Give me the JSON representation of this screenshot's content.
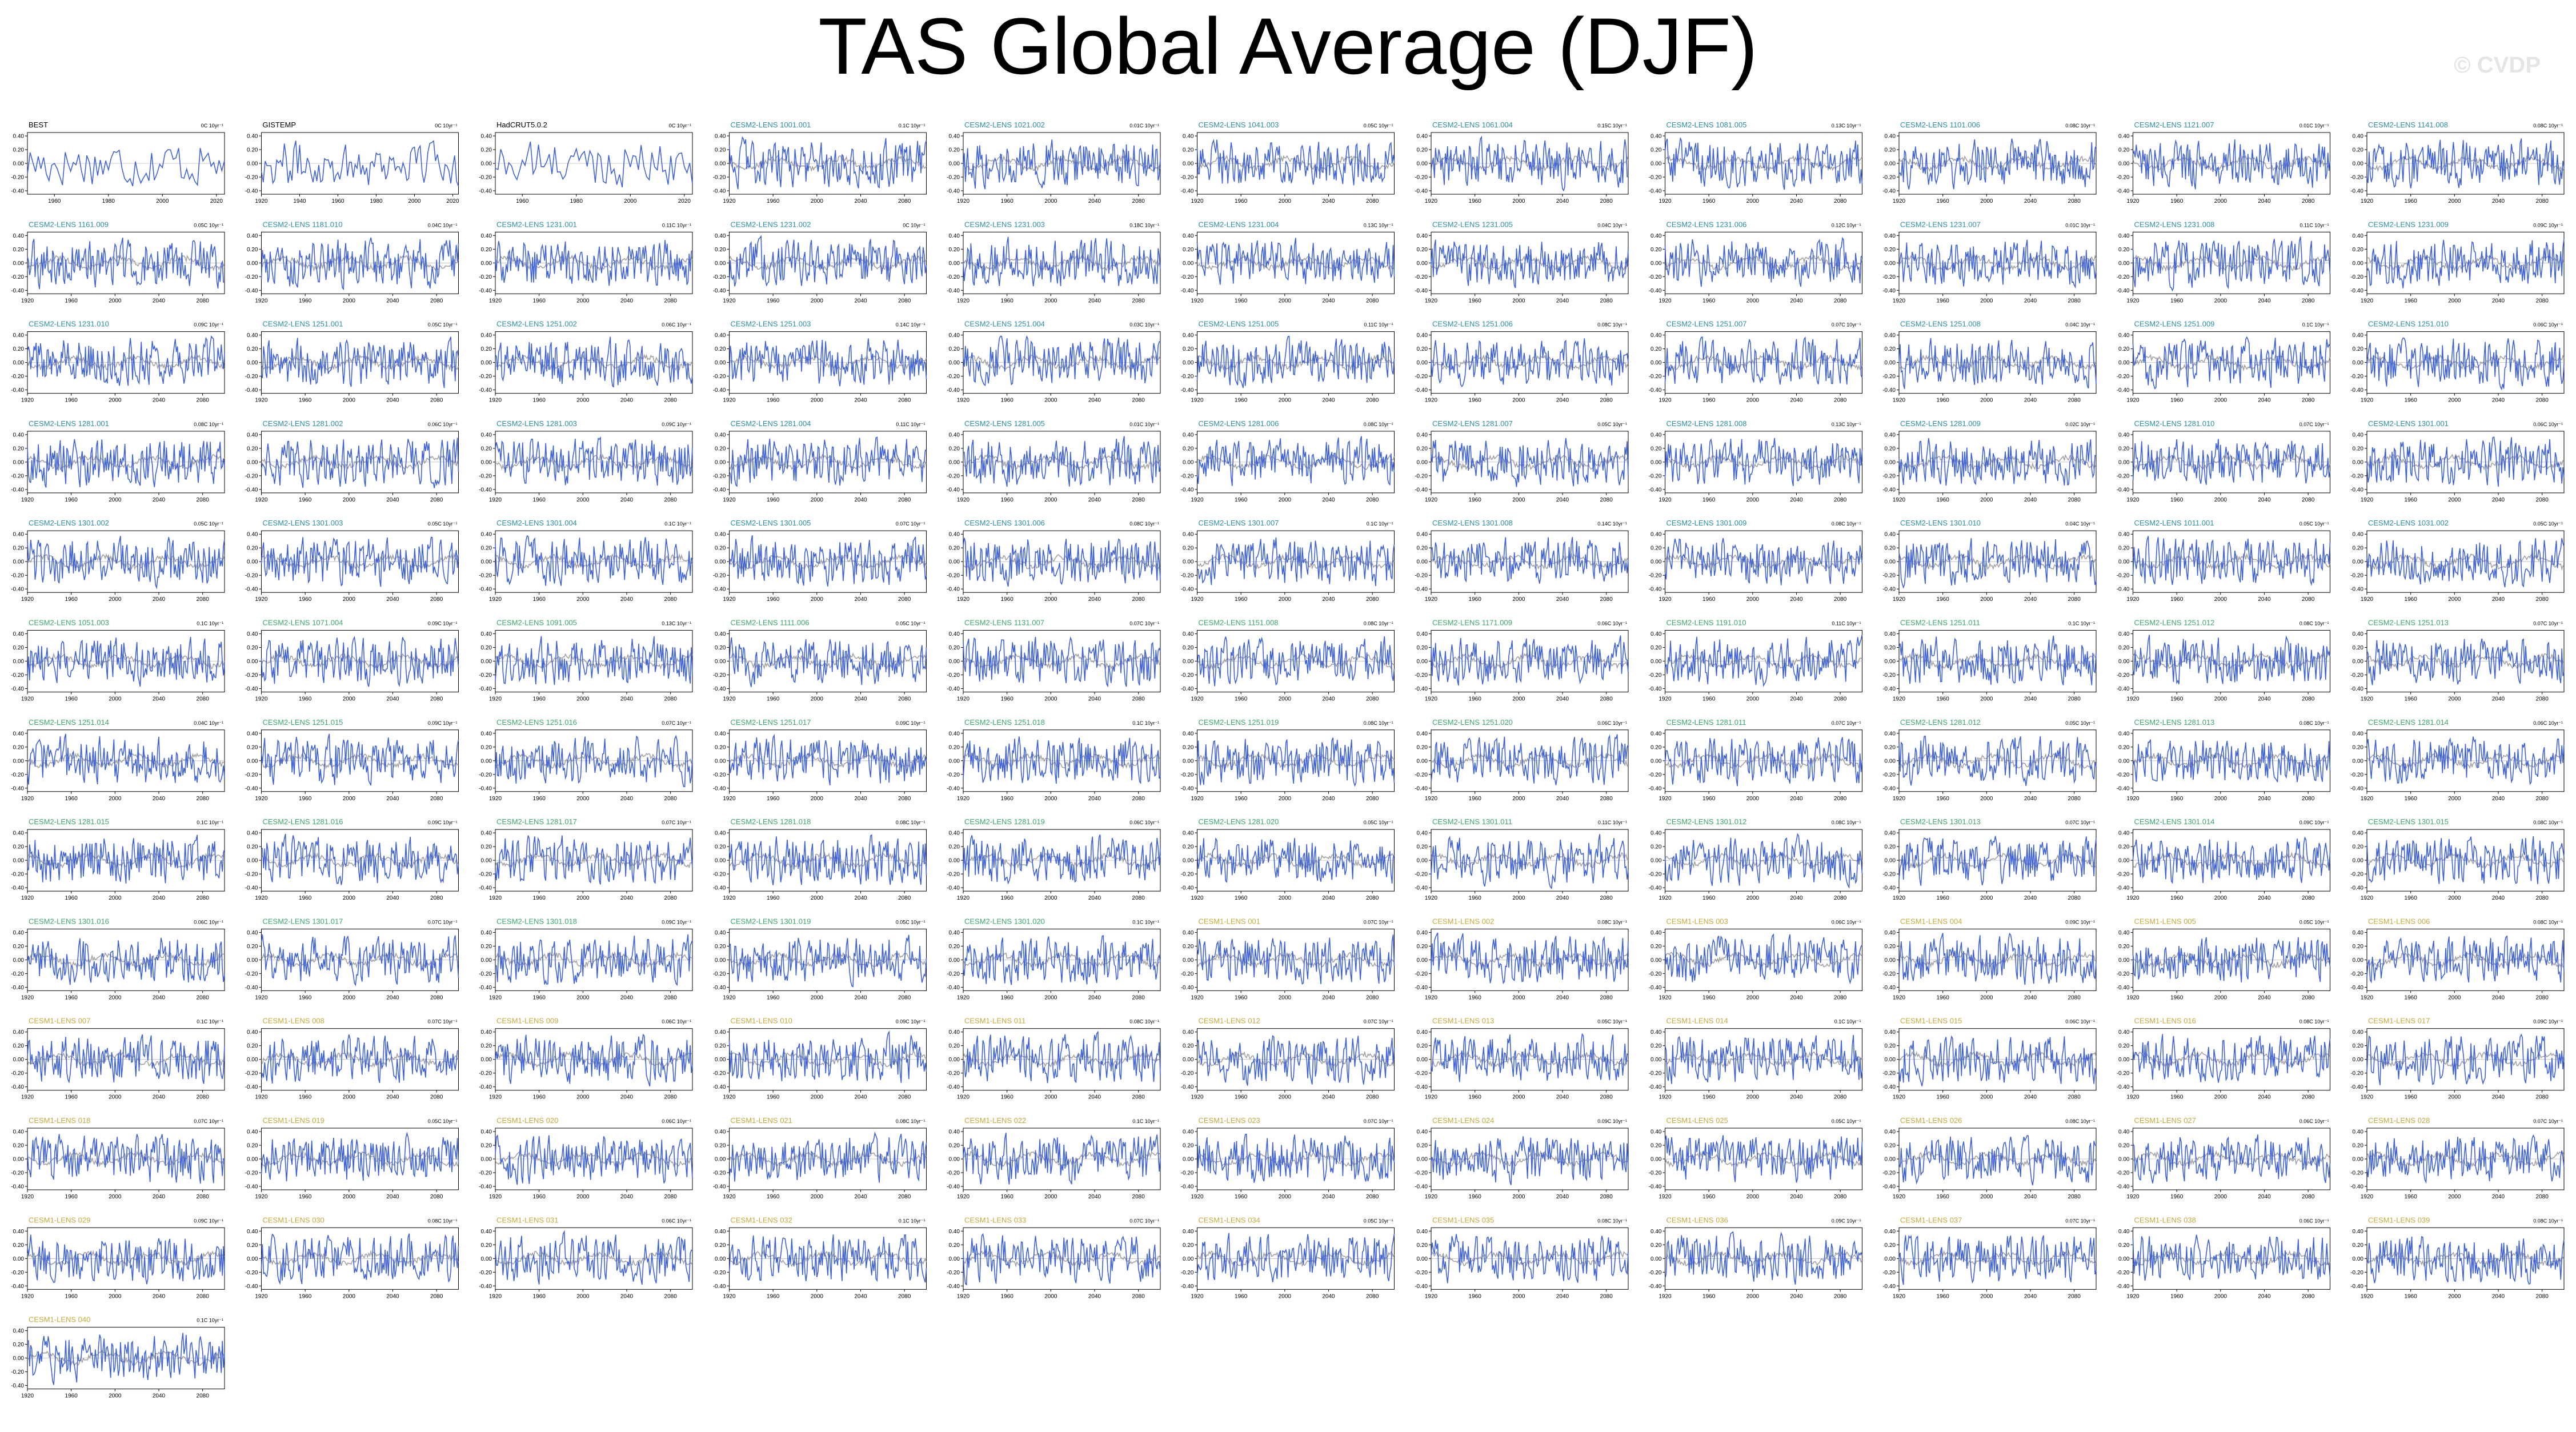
{
  "figure": {
    "title": "TAS Global Average (DJF)",
    "credit": "© CVDP"
  },
  "colors": {
    "series": "#3f63d6",
    "ensemble_mean": "#8c8c8c",
    "title_observed": "#000000",
    "title_lens1": "#2a8fa5",
    "title_lens2": "#3aa86b",
    "title_gold": "#c7a93a"
  },
  "chart_data": {
    "type": "line",
    "layout": "small-multiples grid, 11 columns x 13 rows",
    "ylim": [
      -0.45,
      0.45
    ],
    "yticks": [
      "0.40",
      "0.20",
      "0.00",
      "-0.20",
      "-0.40"
    ],
    "model_x_range": [
      1920,
      2100
    ],
    "model_xticks": [
      "1920",
      "1960",
      "2000",
      "2040",
      "2080"
    ],
    "observed_panels": [
      {
        "name": "BEST",
        "trend": "0C 10yr⁻¹",
        "x_range": [
          1950,
          2023
        ],
        "xticks": [
          "1960",
          "1980",
          "2000",
          "2020"
        ]
      },
      {
        "name": "GISTEMP",
        "trend": "0C 10yr⁻¹",
        "x_range": [
          1920,
          2023
        ],
        "xticks": [
          "1920",
          "1940",
          "1960",
          "1980",
          "2000",
          "2020"
        ]
      },
      {
        "name": "HadCRUT5.0.2",
        "trend": "0C 10yr⁻¹",
        "x_range": [
          1950,
          2023
        ],
        "xticks": [
          "1960",
          "1980",
          "2000",
          "2020"
        ]
      }
    ],
    "model_panels": [
      {
        "name": "CESM2-LENS 1001.001",
        "trend": "0.1C 10yr⁻¹",
        "color": "lens1"
      },
      {
        "name": "CESM2-LENS 1021.002",
        "trend": "0.01C 10yr⁻¹",
        "color": "lens1"
      },
      {
        "name": "CESM2-LENS 1041.003",
        "trend": "0.05C 10yr⁻¹",
        "color": "lens1"
      },
      {
        "name": "CESM2-LENS 1061.004",
        "trend": "0.15C 10yr⁻¹",
        "color": "lens1"
      },
      {
        "name": "CESM2-LENS 1081.005",
        "trend": "0.13C 10yr⁻¹",
        "color": "lens1"
      },
      {
        "name": "CESM2-LENS 1101.006",
        "trend": "0.08C 10yr⁻¹",
        "color": "lens1"
      },
      {
        "name": "CESM2-LENS 1121.007",
        "trend": "0.01C 10yr⁻¹",
        "color": "lens1"
      },
      {
        "name": "CESM2-LENS 1141.008",
        "trend": "0.08C 10yr⁻¹",
        "color": "lens1"
      },
      {
        "name": "CESM2-LENS 1161.009",
        "trend": "0.05C 10yr⁻¹",
        "color": "lens1"
      },
      {
        "name": "CESM2-LENS 1181.010",
        "trend": "0.04C 10yr⁻¹",
        "color": "lens1"
      },
      {
        "name": "CESM2-LENS 1231.001",
        "trend": "0.11C 10yr⁻¹",
        "color": "lens1"
      },
      {
        "name": "CESM2-LENS 1231.002",
        "trend": "0C 10yr⁻¹",
        "color": "lens1"
      },
      {
        "name": "CESM2-LENS 1231.003",
        "trend": "0.18C 10yr⁻¹",
        "color": "lens1"
      },
      {
        "name": "CESM2-LENS 1231.004",
        "trend": "0.13C 10yr⁻¹",
        "color": "lens1"
      },
      {
        "name": "CESM2-LENS 1231.005",
        "trend": "0.04C 10yr⁻¹",
        "color": "lens1"
      },
      {
        "name": "CESM2-LENS 1231.006",
        "trend": "0.12C 10yr⁻¹",
        "color": "lens1"
      },
      {
        "name": "CESM2-LENS 1231.007",
        "trend": "0.01C 10yr⁻¹",
        "color": "lens1"
      },
      {
        "name": "CESM2-LENS 1231.008",
        "trend": "0.11C 10yr⁻¹",
        "color": "lens1"
      },
      {
        "name": "CESM2-LENS 1231.009",
        "trend": "0.09C 10yr⁻¹",
        "color": "lens1"
      },
      {
        "name": "CESM2-LENS 1231.010",
        "trend": "0.09C 10yr⁻¹",
        "color": "lens1"
      },
      {
        "name": "CESM2-LENS 1251.001",
        "trend": "0.05C 10yr⁻¹",
        "color": "lens1"
      },
      {
        "name": "CESM2-LENS 1251.002",
        "trend": "0.06C 10yr⁻¹",
        "color": "lens1"
      },
      {
        "name": "CESM2-LENS 1251.003",
        "trend": "0.14C 10yr⁻¹",
        "color": "lens1"
      },
      {
        "name": "CESM2-LENS 1251.004",
        "trend": "0.03C 10yr⁻¹",
        "color": "lens1"
      },
      {
        "name": "CESM2-LENS 1251.005",
        "trend": "0.11C 10yr⁻¹",
        "color": "lens1"
      },
      {
        "name": "CESM2-LENS 1251.006",
        "trend": "0.08C 10yr⁻¹",
        "color": "lens1"
      },
      {
        "name": "CESM2-LENS 1251.007",
        "trend": "0.07C 10yr⁻¹",
        "color": "lens1"
      },
      {
        "name": "CESM2-LENS 1251.008",
        "trend": "0.04C 10yr⁻¹",
        "color": "lens1"
      },
      {
        "name": "CESM2-LENS 1251.009",
        "trend": "0.1C 10yr⁻¹",
        "color": "lens1"
      },
      {
        "name": "CESM2-LENS 1251.010",
        "trend": "0.06C 10yr⁻¹",
        "color": "lens1"
      },
      {
        "name": "CESM2-LENS 1281.001",
        "trend": "0.08C 10yr⁻¹",
        "color": "lens1"
      },
      {
        "name": "CESM2-LENS 1281.002",
        "trend": "0.06C 10yr⁻¹",
        "color": "lens1"
      },
      {
        "name": "CESM2-LENS 1281.003",
        "trend": "0.09C 10yr⁻¹",
        "color": "lens1"
      },
      {
        "name": "CESM2-LENS 1281.004",
        "trend": "0.11C 10yr⁻¹",
        "color": "lens1"
      },
      {
        "name": "CESM2-LENS 1281.005",
        "trend": "0.01C 10yr⁻¹",
        "color": "lens1"
      },
      {
        "name": "CESM2-LENS 1281.006",
        "trend": "0.08C 10yr⁻¹",
        "color": "lens1"
      },
      {
        "name": "CESM2-LENS 1281.007",
        "trend": "0.05C 10yr⁻¹",
        "color": "lens1"
      },
      {
        "name": "CESM2-LENS 1281.008",
        "trend": "0.13C 10yr⁻¹",
        "color": "lens1"
      },
      {
        "name": "CESM2-LENS 1281.009",
        "trend": "0.02C 10yr⁻¹",
        "color": "lens1"
      },
      {
        "name": "CESM2-LENS 1281.010",
        "trend": "0.07C 10yr⁻¹",
        "color": "lens1"
      },
      {
        "name": "CESM2-LENS 1301.001",
        "trend": "0.06C 10yr⁻¹",
        "color": "lens1"
      },
      {
        "name": "CESM2-LENS 1301.002",
        "trend": "0.05C 10yr⁻¹",
        "color": "lens1"
      },
      {
        "name": "CESM2-LENS 1301.003",
        "trend": "0.05C 10yr⁻¹",
        "color": "lens1"
      },
      {
        "name": "CESM2-LENS 1301.004",
        "trend": "0.1C 10yr⁻¹",
        "color": "lens1"
      },
      {
        "name": "CESM2-LENS 1301.005",
        "trend": "0.07C 10yr⁻¹",
        "color": "lens1"
      },
      {
        "name": "CESM2-LENS 1301.006",
        "trend": "0.08C 10yr⁻¹",
        "color": "lens1"
      },
      {
        "name": "CESM2-LENS 1301.007",
        "trend": "0.1C 10yr⁻¹",
        "color": "lens1"
      },
      {
        "name": "CESM2-LENS 1301.008",
        "trend": "0.14C 10yr⁻¹",
        "color": "lens1"
      },
      {
        "name": "CESM2-LENS 1301.009",
        "trend": "0.08C 10yr⁻¹",
        "color": "lens1"
      },
      {
        "name": "CESM2-LENS 1301.010",
        "trend": "0.04C 10yr⁻¹",
        "color": "lens1"
      },
      {
        "name": "CESM2-LENS 1011.001",
        "trend": "0.05C 10yr⁻¹",
        "color": "lens1"
      },
      {
        "name": "CESM2-LENS 1031.002",
        "trend": "0.05C 10yr⁻¹",
        "color": "lens1"
      },
      {
        "name": "CESM2-LENS 1051.003",
        "trend": "0.1C 10yr⁻¹",
        "color": "lens2"
      },
      {
        "name": "CESM2-LENS 1071.004",
        "trend": "0.09C 10yr⁻¹",
        "color": "lens2"
      },
      {
        "name": "CESM2-LENS 1091.005",
        "trend": "0.13C 10yr⁻¹",
        "color": "lens2"
      },
      {
        "name": "CESM2-LENS 1111.006",
        "trend": "0.05C 10yr⁻¹",
        "color": "lens2"
      },
      {
        "name": "CESM2-LENS 1131.007",
        "trend": "0.07C 10yr⁻¹",
        "color": "lens2"
      },
      {
        "name": "CESM2-LENS 1151.008",
        "trend": "0.08C 10yr⁻¹",
        "color": "lens2"
      },
      {
        "name": "CESM2-LENS 1171.009",
        "trend": "0.06C 10yr⁻¹",
        "color": "lens2"
      },
      {
        "name": "CESM2-LENS 1191.010",
        "trend": "0.11C 10yr⁻¹",
        "color": "lens2"
      },
      {
        "name": "CESM2-LENS 1251.011",
        "trend": "0.1C 10yr⁻¹",
        "color": "lens2"
      },
      {
        "name": "CESM2-LENS 1251.012",
        "trend": "0.08C 10yr⁻¹",
        "color": "lens2"
      },
      {
        "name": "CESM2-LENS 1251.013",
        "trend": "0.07C 10yr⁻¹",
        "color": "lens2"
      },
      {
        "name": "CESM2-LENS 1251.014",
        "trend": "0.04C 10yr⁻¹",
        "color": "lens2"
      },
      {
        "name": "CESM2-LENS 1251.015",
        "trend": "0.09C 10yr⁻¹",
        "color": "lens2"
      },
      {
        "name": "CESM2-LENS 1251.016",
        "trend": "0.07C 10yr⁻¹",
        "color": "lens2"
      },
      {
        "name": "CESM2-LENS 1251.017",
        "trend": "0.09C 10yr⁻¹",
        "color": "lens2"
      },
      {
        "name": "CESM2-LENS 1251.018",
        "trend": "0.1C 10yr⁻¹",
        "color": "lens2"
      },
      {
        "name": "CESM2-LENS 1251.019",
        "trend": "0.08C 10yr⁻¹",
        "color": "lens2"
      },
      {
        "name": "CESM2-LENS 1251.020",
        "trend": "0.06C 10yr⁻¹",
        "color": "lens2"
      },
      {
        "name": "CESM2-LENS 1281.011",
        "trend": "0.07C 10yr⁻¹",
        "color": "lens2"
      },
      {
        "name": "CESM2-LENS 1281.012",
        "trend": "0.05C 10yr⁻¹",
        "color": "lens2"
      },
      {
        "name": "CESM2-LENS 1281.013",
        "trend": "0.08C 10yr⁻¹",
        "color": "lens2"
      },
      {
        "name": "CESM2-LENS 1281.014",
        "trend": "0.06C 10yr⁻¹",
        "color": "lens2"
      },
      {
        "name": "CESM2-LENS 1281.015",
        "trend": "0.1C 10yr⁻¹",
        "color": "lens2"
      },
      {
        "name": "CESM2-LENS 1281.016",
        "trend": "0.09C 10yr⁻¹",
        "color": "lens2"
      },
      {
        "name": "CESM2-LENS 1281.017",
        "trend": "0.07C 10yr⁻¹",
        "color": "lens2"
      },
      {
        "name": "CESM2-LENS 1281.018",
        "trend": "0.08C 10yr⁻¹",
        "color": "lens2"
      },
      {
        "name": "CESM2-LENS 1281.019",
        "trend": "0.06C 10yr⁻¹",
        "color": "lens2"
      },
      {
        "name": "CESM2-LENS 1281.020",
        "trend": "0.05C 10yr⁻¹",
        "color": "lens2"
      },
      {
        "name": "CESM2-LENS 1301.011",
        "trend": "0.11C 10yr⁻¹",
        "color": "lens2"
      },
      {
        "name": "CESM2-LENS 1301.012",
        "trend": "0.08C 10yr⁻¹",
        "color": "lens2"
      },
      {
        "name": "CESM2-LENS 1301.013",
        "trend": "0.07C 10yr⁻¹",
        "color": "lens2"
      },
      {
        "name": "CESM2-LENS 1301.014",
        "trend": "0.09C 10yr⁻¹",
        "color": "lens2"
      },
      {
        "name": "CESM2-LENS 1301.015",
        "trend": "0.08C 10yr⁻¹",
        "color": "lens2"
      },
      {
        "name": "CESM2-LENS 1301.016",
        "trend": "0.06C 10yr⁻¹",
        "color": "lens2"
      },
      {
        "name": "CESM2-LENS 1301.017",
        "trend": "0.07C 10yr⁻¹",
        "color": "lens2"
      },
      {
        "name": "CESM2-LENS 1301.018",
        "trend": "0.09C 10yr⁻¹",
        "color": "lens2"
      },
      {
        "name": "CESM2-LENS 1301.019",
        "trend": "0.05C 10yr⁻¹",
        "color": "lens2"
      },
      {
        "name": "CESM2-LENS 1301.020",
        "trend": "0.1C 10yr⁻¹",
        "color": "lens2"
      },
      {
        "name": "CESM1-LENS 001",
        "trend": "0.07C 10yr⁻¹",
        "color": "gold"
      },
      {
        "name": "CESM1-LENS 002",
        "trend": "0.08C 10yr⁻¹",
        "color": "gold"
      },
      {
        "name": "CESM1-LENS 003",
        "trend": "0.06C 10yr⁻¹",
        "color": "gold"
      },
      {
        "name": "CESM1-LENS 004",
        "trend": "0.09C 10yr⁻¹",
        "color": "gold"
      },
      {
        "name": "CESM1-LENS 005",
        "trend": "0.05C 10yr⁻¹",
        "color": "gold"
      },
      {
        "name": "CESM1-LENS 006",
        "trend": "0.08C 10yr⁻¹",
        "color": "gold"
      },
      {
        "name": "CESM1-LENS 007",
        "trend": "0.1C 10yr⁻¹",
        "color": "gold"
      },
      {
        "name": "CESM1-LENS 008",
        "trend": "0.07C 10yr⁻¹",
        "color": "gold"
      },
      {
        "name": "CESM1-LENS 009",
        "trend": "0.06C 10yr⁻¹",
        "color": "gold"
      },
      {
        "name": "CESM1-LENS 010",
        "trend": "0.09C 10yr⁻¹",
        "color": "gold"
      },
      {
        "name": "CESM1-LENS 011",
        "trend": "0.08C 10yr⁻¹",
        "color": "gold"
      },
      {
        "name": "CESM1-LENS 012",
        "trend": "0.07C 10yr⁻¹",
        "color": "gold"
      },
      {
        "name": "CESM1-LENS 013",
        "trend": "0.05C 10yr⁻¹",
        "color": "gold"
      },
      {
        "name": "CESM1-LENS 014",
        "trend": "0.1C 10yr⁻¹",
        "color": "gold"
      },
      {
        "name": "CESM1-LENS 015",
        "trend": "0.06C 10yr⁻¹",
        "color": "gold"
      },
      {
        "name": "CESM1-LENS 016",
        "trend": "0.08C 10yr⁻¹",
        "color": "gold"
      },
      {
        "name": "CESM1-LENS 017",
        "trend": "0.09C 10yr⁻¹",
        "color": "gold"
      },
      {
        "name": "CESM1-LENS 018",
        "trend": "0.07C 10yr⁻¹",
        "color": "gold"
      },
      {
        "name": "CESM1-LENS 019",
        "trend": "0.05C 10yr⁻¹",
        "color": "gold"
      },
      {
        "name": "CESM1-LENS 020",
        "trend": "0.06C 10yr⁻¹",
        "color": "gold"
      },
      {
        "name": "CESM1-LENS 021",
        "trend": "0.08C 10yr⁻¹",
        "color": "gold"
      },
      {
        "name": "CESM1-LENS 022",
        "trend": "0.1C 10yr⁻¹",
        "color": "gold"
      },
      {
        "name": "CESM1-LENS 023",
        "trend": "0.07C 10yr⁻¹",
        "color": "gold"
      },
      {
        "name": "CESM1-LENS 024",
        "trend": "0.09C 10yr⁻¹",
        "color": "gold"
      },
      {
        "name": "CESM1-LENS 025",
        "trend": "0.05C 10yr⁻¹",
        "color": "gold"
      },
      {
        "name": "CESM1-LENS 026",
        "trend": "0.08C 10yr⁻¹",
        "color": "gold"
      },
      {
        "name": "CESM1-LENS 027",
        "trend": "0.06C 10yr⁻¹",
        "color": "gold"
      },
      {
        "name": "CESM1-LENS 028",
        "trend": "0.07C 10yr⁻¹",
        "color": "gold"
      },
      {
        "name": "CESM1-LENS 029",
        "trend": "0.09C 10yr⁻¹",
        "color": "gold"
      },
      {
        "name": "CESM1-LENS 030",
        "trend": "0.08C 10yr⁻¹",
        "color": "gold"
      },
      {
        "name": "CESM1-LENS 031",
        "trend": "0.06C 10yr⁻¹",
        "color": "gold"
      },
      {
        "name": "CESM1-LENS 032",
        "trend": "0.1C 10yr⁻¹",
        "color": "gold"
      },
      {
        "name": "CESM1-LENS 033",
        "trend": "0.07C 10yr⁻¹",
        "color": "gold"
      },
      {
        "name": "CESM1-LENS 034",
        "trend": "0.05C 10yr⁻¹",
        "color": "gold"
      },
      {
        "name": "CESM1-LENS 035",
        "trend": "0.08C 10yr⁻¹",
        "color": "gold"
      },
      {
        "name": "CESM1-LENS 036",
        "trend": "0.09C 10yr⁻¹",
        "color": "gold"
      },
      {
        "name": "CESM1-LENS 037",
        "trend": "0.07C 10yr⁻¹",
        "color": "gold"
      },
      {
        "name": "CESM1-LENS 038",
        "trend": "0.06C 10yr⁻¹",
        "color": "gold"
      },
      {
        "name": "CESM1-LENS 039",
        "trend": "0.08C 10yr⁻¹",
        "color": "gold"
      },
      {
        "name": "CESM1-LENS 040",
        "trend": "0.1C 10yr⁻¹",
        "color": "gold"
      }
    ]
  }
}
